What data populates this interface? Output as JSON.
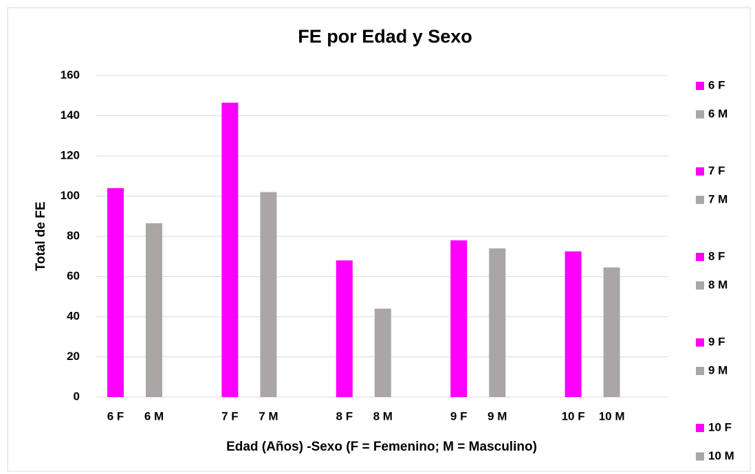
{
  "chart_data": {
    "type": "bar",
    "title": "FE por Edad y Sexo",
    "x_label": "Edad (Años) -Sexo (F = Femenino; M = Masculino)",
    "y_label": "Total de FE",
    "categories": [
      "6 F",
      "6 M",
      "7 F",
      "7 M",
      "8 F",
      "8 M",
      "9 F",
      "9 M",
      "10 F",
      "10 M"
    ],
    "values": [
      104,
      86.5,
      146.5,
      102,
      68,
      44,
      78,
      74,
      72.5,
      64.5
    ],
    "colors": [
      "#ff00ff",
      "#aaa6a6",
      "#ff00ff",
      "#aaa6a6",
      "#ff00ff",
      "#aaa6a6",
      "#ff00ff",
      "#aaa6a6",
      "#ff00ff",
      "#aaa6a6"
    ],
    "ylim": [
      0,
      160
    ],
    "yticks": [
      0,
      20,
      40,
      60,
      80,
      100,
      120,
      140,
      160
    ],
    "grid": true,
    "legend": "right"
  }
}
